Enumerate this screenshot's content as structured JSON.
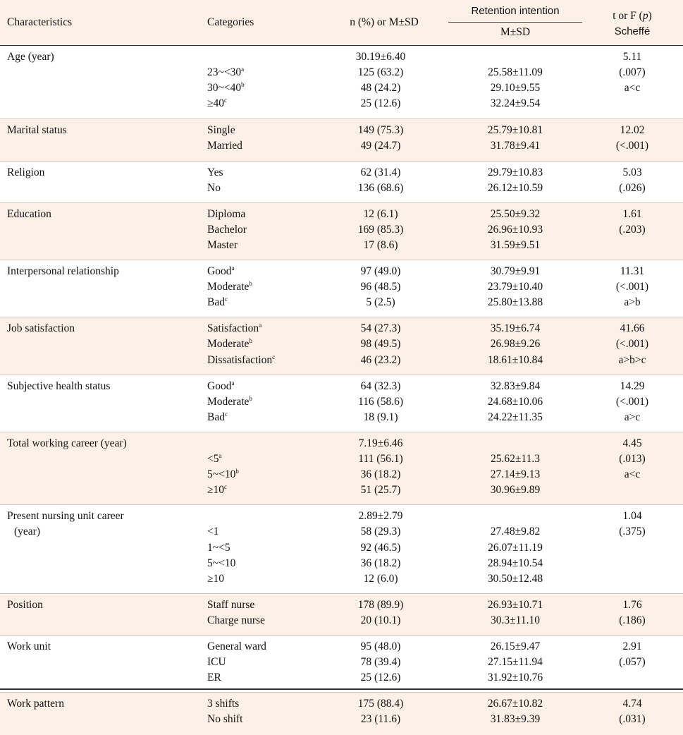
{
  "header": {
    "characteristics": "Characteristics",
    "categories": "Categories",
    "n_pct_msd": "n (%) or M±SD",
    "retention_intention": "Retention intention",
    "msd": "M±SD",
    "t_or_f": "t or F (",
    "p": "p",
    "t_or_f_close": ")",
    "scheffe": "Scheffé"
  },
  "groups": [
    {
      "characteristic": "Age (year)",
      "shaded": false,
      "rows": [
        {
          "cat": "",
          "sup": "",
          "n": "30.19±6.40",
          "mean": "",
          "stat": "5.11"
        },
        {
          "cat": "23~<30",
          "sup": "a",
          "n": "125 (63.2)",
          "mean": "25.58±11.09",
          "stat": "(.007)"
        },
        {
          "cat": "30~<40",
          "sup": "b",
          "n": "48 (24.2)",
          "mean": "29.10±9.55",
          "stat": "a<c"
        },
        {
          "cat": "≥40",
          "sup": "c",
          "n": "25 (12.6)",
          "mean": "32.24±9.54",
          "stat": ""
        }
      ]
    },
    {
      "characteristic": "Marital status",
      "shaded": true,
      "rows": [
        {
          "cat": "Single",
          "sup": "",
          "n": "149 (75.3)",
          "mean": "25.79±10.81",
          "stat": "12.02"
        },
        {
          "cat": "Married",
          "sup": "",
          "n": "49 (24.7)",
          "mean": "31.78±9.41",
          "stat": "(<.001)"
        }
      ]
    },
    {
      "characteristic": "Religion",
      "shaded": false,
      "rows": [
        {
          "cat": "Yes",
          "sup": "",
          "n": "62 (31.4)",
          "mean": "29.79±10.83",
          "stat": "5.03"
        },
        {
          "cat": "No",
          "sup": "",
          "n": "136 (68.6)",
          "mean": "26.12±10.59",
          "stat": "(.026)"
        }
      ]
    },
    {
      "characteristic": "Education",
      "shaded": true,
      "rows": [
        {
          "cat": "Diploma",
          "sup": "",
          "n": "12 (6.1)",
          "mean": "25.50±9.32",
          "stat": "1.61"
        },
        {
          "cat": "Bachelor",
          "sup": "",
          "n": "169 (85.3)",
          "mean": "26.96±10.93",
          "stat": "(.203)"
        },
        {
          "cat": "Master",
          "sup": "",
          "n": "17 (8.6)",
          "mean": "31.59±9.51",
          "stat": ""
        }
      ]
    },
    {
      "characteristic": "Interpersonal relationship",
      "shaded": false,
      "rows": [
        {
          "cat": "Good",
          "sup": "a",
          "n": "97 (49.0)",
          "mean": "30.79±9.91",
          "stat": "11.31"
        },
        {
          "cat": "Moderate",
          "sup": "b",
          "n": "96 (48.5)",
          "mean": "23.79±10.40",
          "stat": "(<.001)"
        },
        {
          "cat": "Bad",
          "sup": "c",
          "n": "5 (2.5)",
          "mean": "25.80±13.88",
          "stat": "a>b"
        }
      ]
    },
    {
      "characteristic": "Job satisfaction",
      "shaded": true,
      "rows": [
        {
          "cat": "Satisfaction",
          "sup": "a",
          "n": "54 (27.3)",
          "mean": "35.19±6.74",
          "stat": "41.66"
        },
        {
          "cat": "Moderate",
          "sup": "b",
          "n": "98 (49.5)",
          "mean": "26.98±9.26",
          "stat": "(<.001)"
        },
        {
          "cat": "Dissatisfaction",
          "sup": "c",
          "n": "46 (23.2)",
          "mean": "18.61±10.84",
          "stat": "a>b>c"
        }
      ]
    },
    {
      "characteristic": "Subjective health status",
      "shaded": false,
      "rows": [
        {
          "cat": "Good",
          "sup": "a",
          "n": "64 (32.3)",
          "mean": "32.83±9.84",
          "stat": "14.29"
        },
        {
          "cat": "Moderate",
          "sup": "b",
          "n": "116 (58.6)",
          "mean": "24.68±10.06",
          "stat": "(<.001)"
        },
        {
          "cat": "Bad",
          "sup": "c",
          "n": "18 (9.1)",
          "mean": "24.22±11.35",
          "stat": "a>c"
        }
      ]
    },
    {
      "characteristic": "Total working career (year)",
      "shaded": true,
      "rows": [
        {
          "cat": "",
          "sup": "",
          "n": "7.19±6.46",
          "mean": "",
          "stat": "4.45"
        },
        {
          "cat": "<5",
          "sup": "a",
          "n": "111 (56.1)",
          "mean": "25.62±11.3",
          "stat": "(.013)"
        },
        {
          "cat": "5~<10",
          "sup": "b",
          "n": "36 (18.2)",
          "mean": "27.14±9.13",
          "stat": "a<c"
        },
        {
          "cat": "≥10",
          "sup": "c",
          "n": "51 (25.7)",
          "mean": "30.96±9.89",
          "stat": ""
        }
      ]
    },
    {
      "characteristic": "Present nursing unit career",
      "characteristic2": "(year)",
      "shaded": false,
      "rows": [
        {
          "cat": "",
          "sup": "",
          "n": "2.89±2.79",
          "mean": "",
          "stat": "1.04"
        },
        {
          "cat": "<1",
          "sup": "",
          "n": "58 (29.3)",
          "mean": "27.48±9.82",
          "stat": "(.375)"
        },
        {
          "cat": "1~<5",
          "sup": "",
          "n": "92 (46.5)",
          "mean": "26.07±11.19",
          "stat": ""
        },
        {
          "cat": "5~<10",
          "sup": "",
          "n": "36 (18.2)",
          "mean": "28.94±10.54",
          "stat": ""
        },
        {
          "cat": "≥10",
          "sup": "",
          "n": "12 (6.0)",
          "mean": "30.50±12.48",
          "stat": ""
        }
      ]
    },
    {
      "characteristic": "Position",
      "shaded": true,
      "rows": [
        {
          "cat": "Staff nurse",
          "sup": "",
          "n": "178 (89.9)",
          "mean": "26.93±10.71",
          "stat": "1.76"
        },
        {
          "cat": "Charge nurse",
          "sup": "",
          "n": "20 (10.1)",
          "mean": "30.3±11.10",
          "stat": "(.186)"
        }
      ]
    },
    {
      "characteristic": "Work unit",
      "shaded": false,
      "rows": [
        {
          "cat": "General ward",
          "sup": "",
          "n": "95 (48.0)",
          "mean": "26.15±9.47",
          "stat": "2.91"
        },
        {
          "cat": "ICU",
          "sup": "",
          "n": "78 (39.4)",
          "mean": "27.15±11.94",
          "stat": "(.057)"
        },
        {
          "cat": "ER",
          "sup": "",
          "n": "25 (12.6)",
          "mean": "31.92±10.76",
          "stat": ""
        }
      ]
    },
    {
      "characteristic": "Work pattern",
      "shaded": true,
      "rows": [
        {
          "cat": "3 shifts",
          "sup": "",
          "n": "175 (88.4)",
          "mean": "26.67±10.82",
          "stat": "4.74"
        },
        {
          "cat": "No shift",
          "sup": "",
          "n": "23 (11.6)",
          "mean": "31.83±9.39",
          "stat": "(.031)"
        }
      ]
    }
  ]
}
